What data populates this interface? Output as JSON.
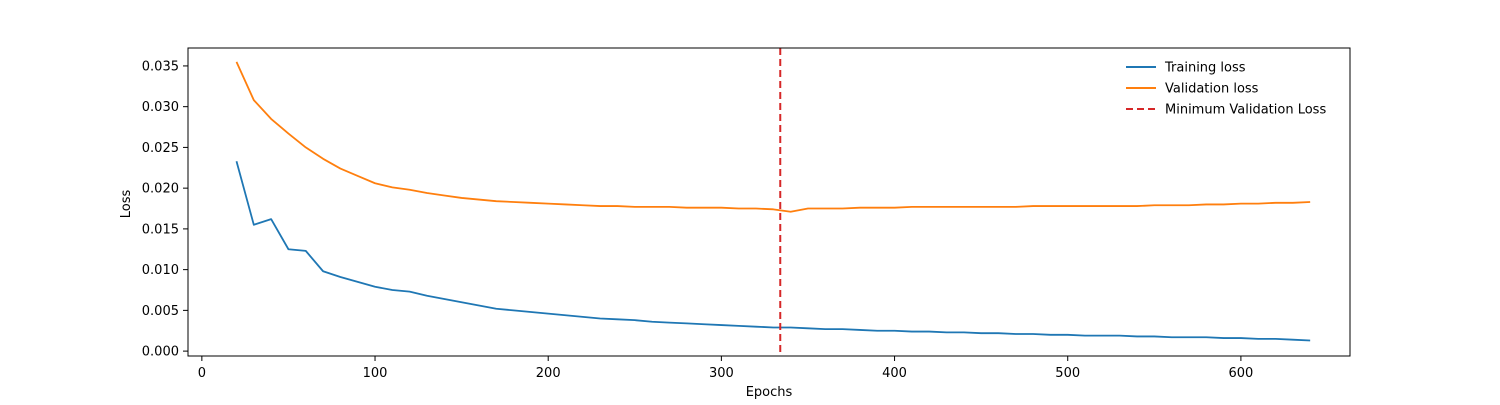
{
  "chart_data": {
    "type": "line",
    "xlabel": "Epochs",
    "ylabel": "Loss",
    "xlim": [
      -8,
      663
    ],
    "ylim": [
      -0.0006,
      0.0372
    ],
    "x_ticks": [
      0,
      100,
      200,
      300,
      400,
      500,
      600
    ],
    "y_ticks": [
      0.0,
      0.005,
      0.01,
      0.015,
      0.02,
      0.025,
      0.03,
      0.035
    ],
    "x_tick_labels": [
      "0",
      "100",
      "200",
      "300",
      "400",
      "500",
      "600"
    ],
    "y_tick_labels": [
      "0.000",
      "0.005",
      "0.010",
      "0.015",
      "0.020",
      "0.025",
      "0.030",
      "0.035"
    ],
    "grid": false,
    "legend_position": "top-right",
    "x_start": 20,
    "x_step": 10,
    "series": [
      {
        "name": "Training loss",
        "color": "#1f77b4",
        "style": "solid",
        "values": [
          0.0233,
          0.0155,
          0.0162,
          0.0125,
          0.0123,
          0.0098,
          0.0091,
          0.0085,
          0.0079,
          0.0075,
          0.0073,
          0.0068,
          0.0064,
          0.006,
          0.0056,
          0.0052,
          0.005,
          0.0048,
          0.0046,
          0.0044,
          0.0042,
          0.004,
          0.0039,
          0.0038,
          0.0036,
          0.0035,
          0.0034,
          0.0033,
          0.0032,
          0.0031,
          0.003,
          0.0029,
          0.0029,
          0.0028,
          0.0027,
          0.0027,
          0.0026,
          0.0025,
          0.0025,
          0.0024,
          0.0024,
          0.0023,
          0.0023,
          0.0022,
          0.0022,
          0.0021,
          0.0021,
          0.002,
          0.002,
          0.0019,
          0.0019,
          0.0019,
          0.0018,
          0.0018,
          0.0017,
          0.0017,
          0.0017,
          0.0016,
          0.0016,
          0.0015,
          0.0015,
          0.0014,
          0.0013
        ]
      },
      {
        "name": "Validation loss",
        "color": "#ff7f0e",
        "style": "solid",
        "values": [
          0.0355,
          0.0308,
          0.0285,
          0.0267,
          0.025,
          0.0236,
          0.0224,
          0.0215,
          0.0206,
          0.0201,
          0.0198,
          0.0194,
          0.0191,
          0.0188,
          0.0186,
          0.0184,
          0.0183,
          0.0182,
          0.0181,
          0.018,
          0.0179,
          0.0178,
          0.0178,
          0.0177,
          0.0177,
          0.0177,
          0.0176,
          0.0176,
          0.0176,
          0.0175,
          0.0175,
          0.0174,
          0.0171,
          0.0175,
          0.0175,
          0.0175,
          0.0176,
          0.0176,
          0.0176,
          0.0177,
          0.0177,
          0.0177,
          0.0177,
          0.0177,
          0.0177,
          0.0177,
          0.0178,
          0.0178,
          0.0178,
          0.0178,
          0.0178,
          0.0178,
          0.0178,
          0.0179,
          0.0179,
          0.0179,
          0.018,
          0.018,
          0.0181,
          0.0181,
          0.0182,
          0.0182,
          0.0183
        ]
      }
    ],
    "vline": {
      "name": "Minimum Validation Loss",
      "x": 334,
      "color": "#d62728",
      "style": "dashed"
    }
  }
}
